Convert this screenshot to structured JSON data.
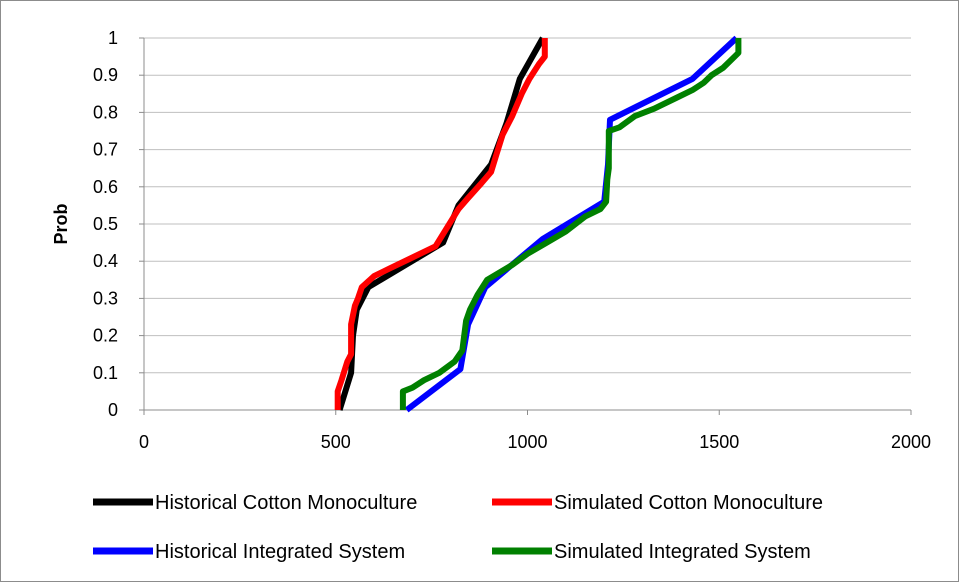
{
  "chart_data": {
    "type": "line",
    "title": "",
    "xlabel": "",
    "ylabel": "Prob",
    "xlim": [
      0,
      2000
    ],
    "ylim": [
      0,
      1
    ],
    "x_ticks": [
      0,
      500,
      1000,
      1500,
      2000
    ],
    "y_ticks": [
      0,
      0.1,
      0.2,
      0.3,
      0.4,
      0.5,
      0.6,
      0.7,
      0.8,
      0.9,
      1
    ],
    "grid": "horizontal",
    "legend_position": "bottom",
    "series": [
      {
        "name": "Historical Cotton Monoculture",
        "color": "#000000",
        "points": [
          [
            510,
            0
          ],
          [
            540,
            0.1
          ],
          [
            545,
            0.2
          ],
          [
            555,
            0.27
          ],
          [
            585,
            0.33
          ],
          [
            780,
            0.45
          ],
          [
            820,
            0.55
          ],
          [
            905,
            0.66
          ],
          [
            945,
            0.77
          ],
          [
            980,
            0.89
          ],
          [
            1040,
            1.0
          ]
        ]
      },
      {
        "name": "Simulated Cotton Monoculture",
        "color": "#ff0000",
        "points": [
          [
            505,
            0
          ],
          [
            505,
            0.05
          ],
          [
            515,
            0.08
          ],
          [
            530,
            0.13
          ],
          [
            540,
            0.15
          ],
          [
            540,
            0.23
          ],
          [
            550,
            0.28
          ],
          [
            558,
            0.3
          ],
          [
            568,
            0.33
          ],
          [
            600,
            0.36
          ],
          [
            640,
            0.38
          ],
          [
            700,
            0.41
          ],
          [
            760,
            0.44
          ],
          [
            820,
            0.54
          ],
          [
            845,
            0.57
          ],
          [
            880,
            0.61
          ],
          [
            905,
            0.64
          ],
          [
            920,
            0.69
          ],
          [
            935,
            0.74
          ],
          [
            960,
            0.79
          ],
          [
            985,
            0.85
          ],
          [
            1005,
            0.89
          ],
          [
            1030,
            0.93
          ],
          [
            1045,
            0.95
          ],
          [
            1045,
            1.0
          ]
        ]
      },
      {
        "name": "Historical Integrated System",
        "color": "#0000ff",
        "points": [
          [
            685,
            0
          ],
          [
            825,
            0.11
          ],
          [
            845,
            0.23
          ],
          [
            890,
            0.33
          ],
          [
            1040,
            0.46
          ],
          [
            1200,
            0.56
          ],
          [
            1210,
            0.66
          ],
          [
            1215,
            0.78
          ],
          [
            1430,
            0.89
          ],
          [
            1545,
            1.0
          ]
        ]
      },
      {
        "name": "Simulated Integrated System",
        "color": "#008000",
        "points": [
          [
            675,
            0
          ],
          [
            675,
            0.05
          ],
          [
            700,
            0.06
          ],
          [
            730,
            0.08
          ],
          [
            770,
            0.1
          ],
          [
            810,
            0.13
          ],
          [
            830,
            0.16
          ],
          [
            835,
            0.2
          ],
          [
            840,
            0.24
          ],
          [
            850,
            0.27
          ],
          [
            870,
            0.31
          ],
          [
            895,
            0.35
          ],
          [
            960,
            0.39
          ],
          [
            1000,
            0.42
          ],
          [
            1050,
            0.45
          ],
          [
            1100,
            0.48
          ],
          [
            1150,
            0.52
          ],
          [
            1190,
            0.54
          ],
          [
            1205,
            0.56
          ],
          [
            1208,
            0.62
          ],
          [
            1212,
            0.65
          ],
          [
            1212,
            0.75
          ],
          [
            1240,
            0.76
          ],
          [
            1280,
            0.79
          ],
          [
            1330,
            0.81
          ],
          [
            1390,
            0.84
          ],
          [
            1430,
            0.86
          ],
          [
            1460,
            0.88
          ],
          [
            1480,
            0.9
          ],
          [
            1510,
            0.92
          ],
          [
            1540,
            0.95
          ],
          [
            1550,
            0.96
          ],
          [
            1550,
            1.0
          ]
        ]
      }
    ]
  }
}
